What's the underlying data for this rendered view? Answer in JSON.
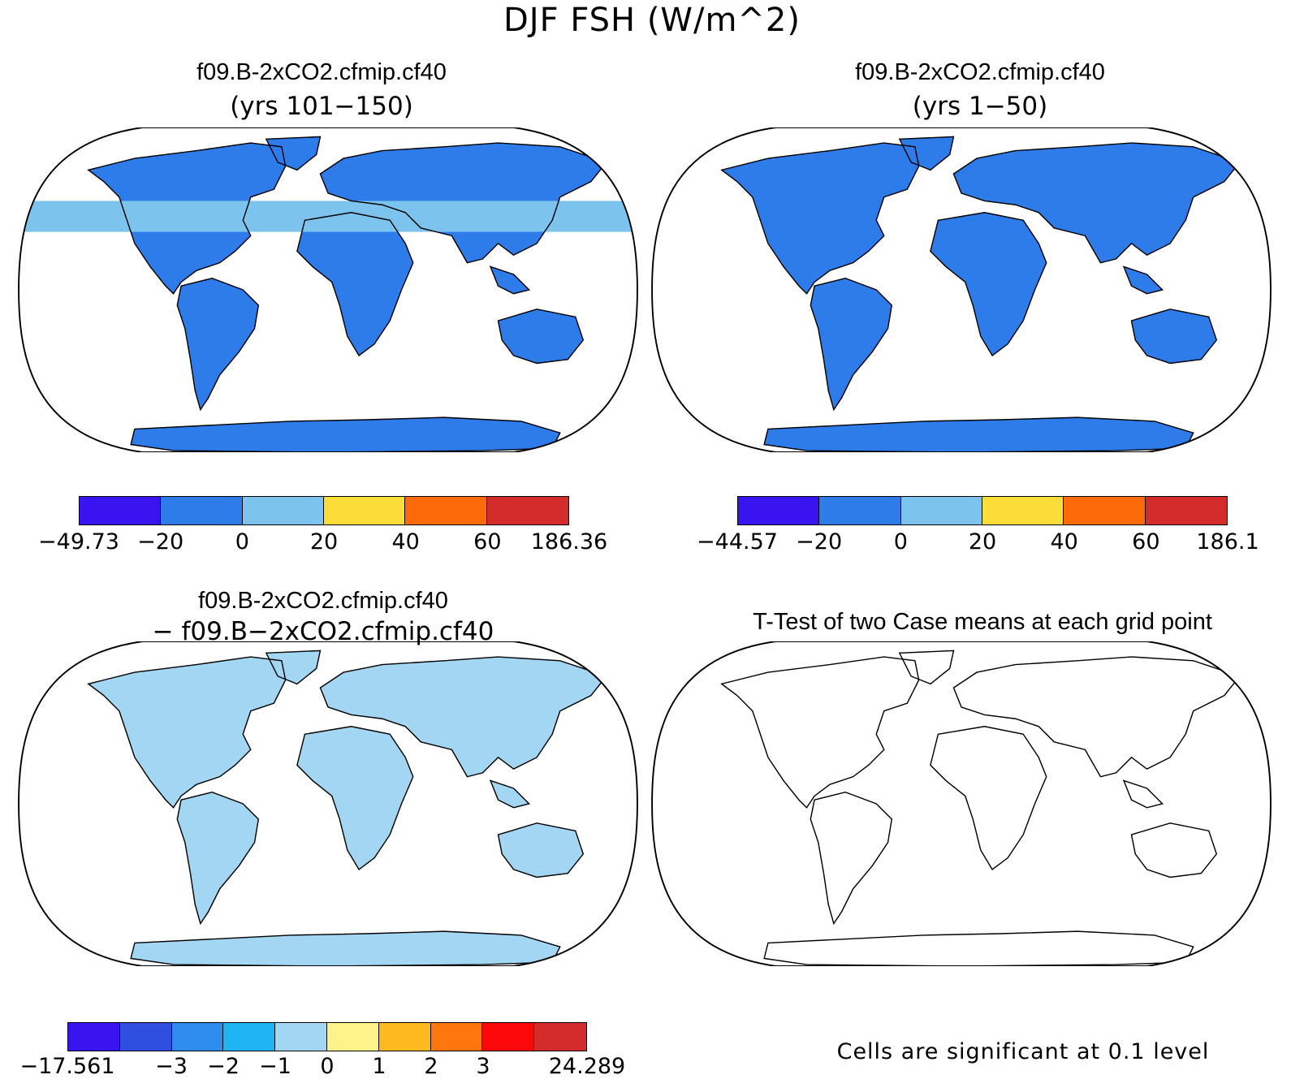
{
  "title": "DJF FSH (W/m^2)",
  "panels": [
    {
      "id": "p1",
      "title": "f09.B-2xCO2.cfmip.cf40",
      "subtitle": "(yrs 101−150)",
      "type": "field"
    },
    {
      "id": "p2",
      "title": "f09.B-2xCO2.cfmip.cf40",
      "subtitle": "(yrs 1−50)",
      "type": "field"
    },
    {
      "id": "p3",
      "title": "f09.B-2xCO2.cfmip.cf40",
      "subtitle": "− f09.B−2xCO2.cfmip.cf40",
      "type": "difference"
    },
    {
      "id": "p4",
      "title": "T-Test of two Case means at each grid point",
      "subtitle": "",
      "type": "significance"
    }
  ],
  "colorbars": {
    "cb1": {
      "colors": [
        "#3a14f0",
        "#2e7bea",
        "#7cc4ee",
        "#fbdd3a",
        "#fd6a0a",
        "#d42b2b"
      ],
      "ticks": [
        "−49.73",
        "−20",
        "0",
        "20",
        "40",
        "60",
        "186.36"
      ]
    },
    "cb2": {
      "colors": [
        "#3a14f0",
        "#2e7bea",
        "#7cc4ee",
        "#fbdd3a",
        "#fd6a0a",
        "#d42b2b"
      ],
      "ticks": [
        "−44.57",
        "−20",
        "0",
        "20",
        "40",
        "60",
        "186.1"
      ]
    },
    "cb3": {
      "colors": [
        "#3a14f0",
        "#2e4fe0",
        "#2e8cee",
        "#1fb4f4",
        "#a3d6f2",
        "#fdf38a",
        "#fdb91e",
        "#fd760e",
        "#fb0808",
        "#d42b2b"
      ],
      "ticks": [
        "−17.561",
        "",
        "−3",
        "−2",
        "−1",
        "0",
        "1",
        "2",
        "3",
        "",
        "24.289"
      ]
    }
  },
  "significance_note": "Cells are significant at 0.1 level",
  "significance_color": "#ff0000"
}
